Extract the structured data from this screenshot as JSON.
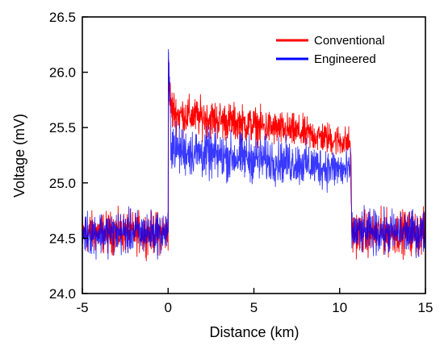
{
  "chart_data": {
    "type": "line",
    "xlabel": "Distance (km)",
    "ylabel": "Voltage (mV)",
    "xlim": [
      -5,
      15
    ],
    "ylim": [
      24.0,
      26.5
    ],
    "x_ticks": [
      "-5",
      "0",
      "5",
      "10",
      "15"
    ],
    "y_ticks": [
      "24.0",
      "24.5",
      "25.0",
      "25.5",
      "26.0",
      "26.5"
    ],
    "grid": false,
    "legend_position": "top-right",
    "series": [
      {
        "name": "Conventional",
        "color": "#ff0000",
        "x": [
          -5.0,
          -2.5,
          0.0,
          0.01,
          0.15,
          0.5,
          2.5,
          5.0,
          7.5,
          10.0,
          10.65,
          10.7,
          12.5,
          15.0
        ],
        "y": [
          24.55,
          24.55,
          24.55,
          25.99,
          25.68,
          25.62,
          25.58,
          25.52,
          25.46,
          25.38,
          25.36,
          24.55,
          24.55,
          24.55
        ],
        "noise_halfwidth": [
          0.17,
          0.17,
          0.17,
          0.2,
          0.2,
          0.16,
          0.16,
          0.15,
          0.14,
          0.13,
          0.13,
          0.18,
          0.18,
          0.18
        ]
      },
      {
        "name": "Engineered",
        "color": "#0000ff",
        "x": [
          -5.0,
          -2.5,
          0.0,
          0.01,
          0.15,
          0.5,
          2.5,
          5.0,
          7.5,
          10.0,
          10.65,
          10.7,
          12.5,
          15.0
        ],
        "y": [
          24.55,
          24.55,
          24.55,
          26.18,
          25.4,
          25.3,
          25.25,
          25.22,
          25.18,
          25.12,
          25.1,
          24.55,
          24.55,
          24.55
        ],
        "noise_halfwidth": [
          0.18,
          0.18,
          0.18,
          0.2,
          0.25,
          0.2,
          0.2,
          0.19,
          0.18,
          0.17,
          0.17,
          0.18,
          0.18,
          0.18
        ]
      }
    ]
  }
}
